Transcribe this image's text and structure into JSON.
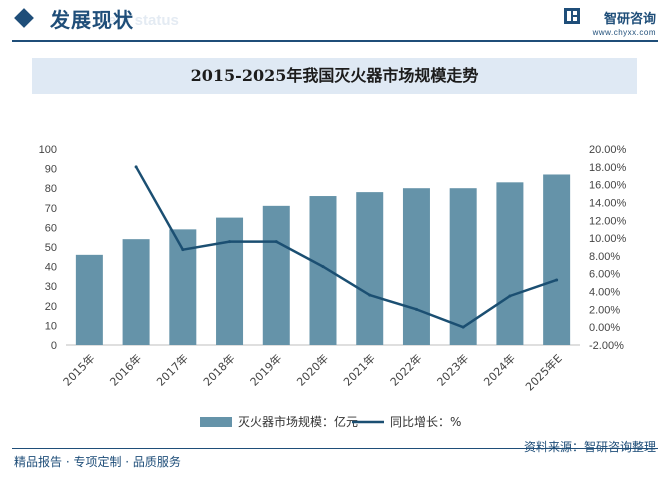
{
  "header": {
    "section_title": "发展现状",
    "ghost_text": "ent status",
    "brand_name": "智研咨询",
    "brand_url": "www.chyxx.com"
  },
  "chart_data": {
    "type": "bar+line",
    "title": "2015-2025年我国灭火器市场规模走势",
    "categories": [
      "2015年",
      "2016年",
      "2017年",
      "2018年",
      "2019年",
      "2020年",
      "2021年",
      "2022年",
      "2023年",
      "2024年",
      "2025年E"
    ],
    "series": [
      {
        "name": "灭火器市场规模：亿元",
        "type": "bar",
        "axis": "left",
        "values": [
          46,
          54,
          59,
          65,
          71,
          76,
          78,
          80,
          80,
          83,
          87
        ]
      },
      {
        "name": "同比增长：%",
        "type": "line",
        "axis": "right",
        "values": [
          null,
          18.0,
          8.7,
          9.6,
          9.6,
          6.8,
          3.6,
          2.0,
          0.0,
          3.5,
          5.3
        ]
      }
    ],
    "y_left": {
      "min": 0,
      "max": 100,
      "step": 10,
      "ticks": [
        "0",
        "10",
        "20",
        "30",
        "40",
        "50",
        "60",
        "70",
        "80",
        "90",
        "100"
      ]
    },
    "y_right": {
      "min": -2,
      "max": 20,
      "step": 2,
      "ticks": [
        "-2.00%",
        "0.00%",
        "2.00%",
        "4.00%",
        "6.00%",
        "8.00%",
        "10.00%",
        "12.00%",
        "14.00%",
        "16.00%",
        "18.00%",
        "20.00%"
      ]
    },
    "colors": {
      "bar": "#6593a9",
      "line": "#1b4f72"
    },
    "grid": false,
    "legend_position": "bottom"
  },
  "footer": {
    "left": "精品报告 · 专项定制 · 品质服务",
    "right": "资料来源：智研咨询整理"
  }
}
